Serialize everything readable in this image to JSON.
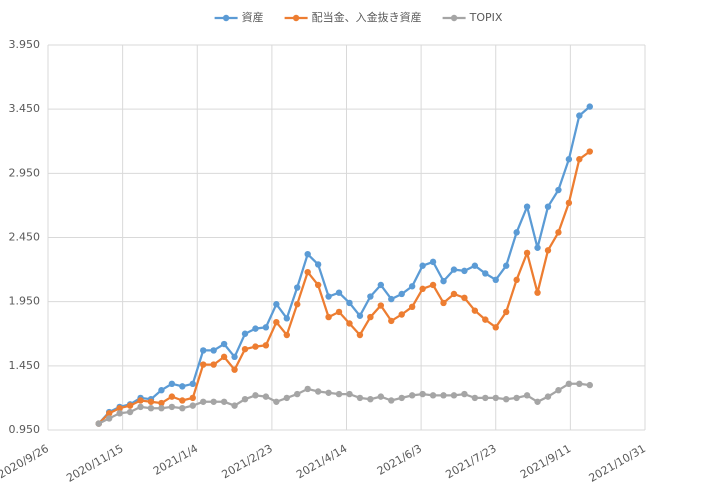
{
  "chart_data": {
    "type": "line",
    "x": [
      "2020/10/30",
      "2020/11/6",
      "2020/11/13",
      "2020/11/20",
      "2020/11/27",
      "2020/12/4",
      "2020/12/11",
      "2020/12/18",
      "2020/12/25",
      "2021/1/1",
      "2021/1/8",
      "2021/1/15",
      "2021/1/22",
      "2021/1/29",
      "2021/2/5",
      "2021/2/12",
      "2021/2/19",
      "2021/2/26",
      "2021/3/5",
      "2021/3/12",
      "2021/3/19",
      "2021/3/26",
      "2021/4/2",
      "2021/4/9",
      "2021/4/16",
      "2021/4/23",
      "2021/4/30",
      "2021/5/7",
      "2021/5/14",
      "2021/5/21",
      "2021/5/28",
      "2021/6/4",
      "2021/6/11",
      "2021/6/18",
      "2021/6/25",
      "2021/7/2",
      "2021/7/9",
      "2021/7/16",
      "2021/7/23",
      "2021/7/30",
      "2021/8/6",
      "2021/8/13",
      "2021/8/20",
      "2021/8/27",
      "2021/9/3",
      "2021/9/10",
      "2021/9/17",
      "2021/9/24"
    ],
    "series": [
      {
        "name": "資産",
        "color": "#5b9bd5",
        "values": [
          1.0,
          1.09,
          1.13,
          1.15,
          1.2,
          1.19,
          1.26,
          1.31,
          1.29,
          1.31,
          1.57,
          1.57,
          1.62,
          1.52,
          1.7,
          1.74,
          1.75,
          1.93,
          1.82,
          2.06,
          2.32,
          2.24,
          1.99,
          2.02,
          1.94,
          1.84,
          1.99,
          2.08,
          1.97,
          2.01,
          2.07,
          2.23,
          2.26,
          2.11,
          2.2,
          2.19,
          2.23,
          2.17,
          2.12,
          2.23,
          2.49,
          2.69,
          2.37,
          2.69,
          2.82,
          3.06,
          3.4,
          3.47
        ]
      },
      {
        "name": "配当金、入金抜き資産",
        "color": "#ed7d31",
        "values": [
          1.0,
          1.08,
          1.12,
          1.14,
          1.18,
          1.17,
          1.16,
          1.21,
          1.18,
          1.2,
          1.46,
          1.46,
          1.52,
          1.42,
          1.58,
          1.6,
          1.61,
          1.79,
          1.69,
          1.93,
          2.18,
          2.08,
          1.83,
          1.87,
          1.78,
          1.69,
          1.83,
          1.92,
          1.8,
          1.85,
          1.91,
          2.05,
          2.08,
          1.94,
          2.01,
          1.98,
          1.88,
          1.81,
          1.75,
          1.87,
          2.12,
          2.33,
          2.02,
          2.35,
          2.49,
          2.72,
          3.06,
          3.12
        ]
      },
      {
        "name": "TOPIX",
        "color": "#a5a5a5",
        "values": [
          1.0,
          1.04,
          1.08,
          1.09,
          1.13,
          1.12,
          1.12,
          1.13,
          1.12,
          1.14,
          1.17,
          1.17,
          1.17,
          1.14,
          1.19,
          1.22,
          1.21,
          1.17,
          1.2,
          1.23,
          1.27,
          1.25,
          1.24,
          1.23,
          1.23,
          1.2,
          1.19,
          1.21,
          1.18,
          1.2,
          1.22,
          1.23,
          1.22,
          1.22,
          1.22,
          1.23,
          1.2,
          1.2,
          1.2,
          1.19,
          1.2,
          1.22,
          1.17,
          1.21,
          1.26,
          1.31,
          1.31,
          1.3
        ]
      }
    ],
    "xlim": [
      "2020/9/26",
      "2021/10/31"
    ],
    "xticks": [
      "2020/9/26",
      "2020/11/15",
      "2021/1/4",
      "2021/2/23",
      "2021/4/14",
      "2021/6/3",
      "2021/7/23",
      "2021/9/11",
      "2021/10/31"
    ],
    "ylim": [
      0.95,
      3.95
    ],
    "yticks": [
      {
        "value": 0.95,
        "label": "0.950"
      },
      {
        "value": 1.45,
        "label": "1.450"
      },
      {
        "value": 1.95,
        "label": "1.950"
      },
      {
        "value": 2.45,
        "label": "2.450"
      },
      {
        "value": 2.95,
        "label": "2.950"
      },
      {
        "value": 3.45,
        "label": "3.450"
      },
      {
        "value": 3.95,
        "label": "3.950"
      }
    ],
    "grid": true,
    "legend": "top"
  }
}
